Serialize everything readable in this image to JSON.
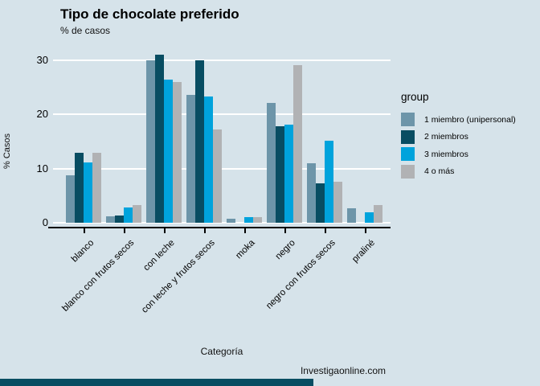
{
  "caption": "Investigaonline.com",
  "colors": {
    "background": "#d6e3ea",
    "gridline": "#ffffff",
    "axis": "#000000",
    "footer_strip": "#084d62"
  },
  "chart_data": {
    "type": "bar",
    "title": "Tipo de chocolate preferido",
    "subtitle": "% de casos",
    "xlabel": "Categoría",
    "ylabel": "% Casos",
    "ylim": [
      0,
      32
    ],
    "yticks": [
      0,
      10,
      20,
      30
    ],
    "grid": true,
    "legend_title": "group",
    "legend_position": "right",
    "categories": [
      "blanco",
      "blanco con frutos secos",
      "con leche",
      "con leche y frutos secos",
      "moka",
      "negro",
      "negro con frutos secos",
      "praliné"
    ],
    "series": [
      {
        "name": "1 miembro (unipersonal)",
        "color": "#6d95a9",
        "values": [
          8.7,
          1.2,
          30.0,
          23.5,
          0.7,
          22.1,
          11.0,
          2.7
        ]
      },
      {
        "name": "2 miembros",
        "color": "#084d62",
        "values": [
          12.9,
          1.4,
          31.0,
          29.9,
          0,
          17.8,
          7.3,
          0
        ]
      },
      {
        "name": "3 miembros",
        "color": "#00a3dc",
        "values": [
          11.1,
          2.8,
          26.4,
          23.3,
          1.0,
          18.1,
          15.1,
          1.9
        ]
      },
      {
        "name": "4 o más",
        "color": "#b1b2b4",
        "values": [
          12.9,
          3.2,
          25.9,
          17.2,
          1.0,
          29.0,
          7.5,
          3.3
        ]
      }
    ]
  }
}
